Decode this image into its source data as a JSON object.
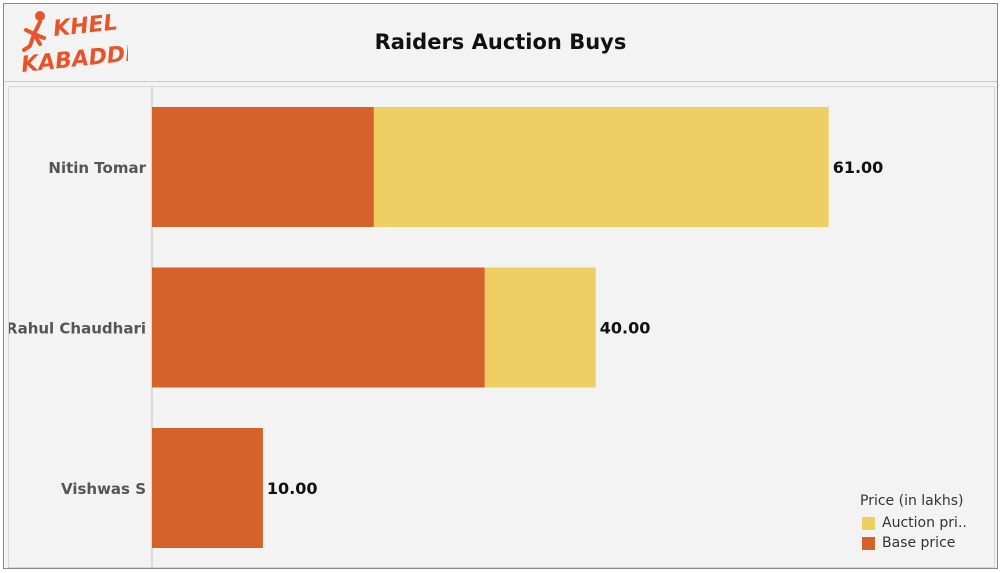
{
  "title": "Raiders Auction Buys",
  "logo": {
    "line1": "KHEL",
    "line2": "KABADDI"
  },
  "colors": {
    "base": "#D4622A",
    "auction": "#EFCF63",
    "axis": "#c0c0c0"
  },
  "chart_data": {
    "type": "bar",
    "orientation": "horizontal",
    "stacked": true,
    "title": "Raiders Auction Buys",
    "categories": [
      "Nitin Tomar",
      "Rahul Chaudhari",
      "Vishwas S"
    ],
    "series": [
      {
        "name": "Base price",
        "values": [
          20,
          30,
          10
        ],
        "color": "#D4622A"
      },
      {
        "name": "Auction pri..",
        "values": [
          41,
          10,
          0
        ],
        "color": "#EFCF63"
      }
    ],
    "totals": [
      61,
      40,
      10
    ],
    "total_labels": [
      "61.00",
      "40.00",
      "10.00"
    ],
    "xlim": [
      0,
      75
    ],
    "grid": false,
    "legend": {
      "title": "Price (in lakhs)",
      "position": "bottom-right",
      "entries": [
        {
          "label": "Auction pri..",
          "color": "#EFCF63"
        },
        {
          "label": "Base price",
          "color": "#D4622A"
        }
      ]
    }
  }
}
